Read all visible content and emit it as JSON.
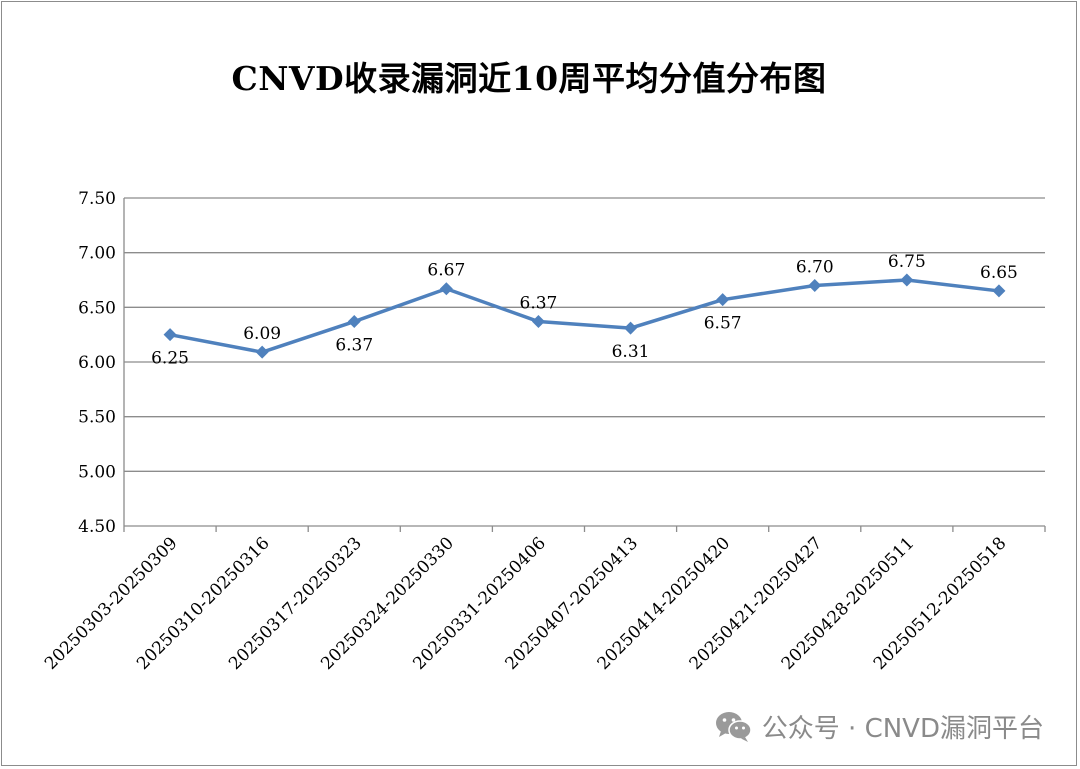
{
  "watermark": {
    "text": "公众号 · CNVD漏洞平台",
    "icon": "wechat-icon"
  },
  "chart_data": {
    "type": "line",
    "title": "CNVD收录漏洞近10周平均分值分布图",
    "xlabel": "",
    "ylabel": "",
    "categories": [
      "20250303-20250309",
      "20250310-20250316",
      "20250317-20250323",
      "20250324-20250330",
      "20250331-20250406",
      "20250407-20250413",
      "20250414-20250420",
      "20250421-20250427",
      "20250428-20250511",
      "20250512-20250518"
    ],
    "series": [
      {
        "values": [
          6.25,
          6.09,
          6.37,
          6.67,
          6.37,
          6.31,
          6.57,
          6.7,
          6.75,
          6.65
        ],
        "data_labels": [
          "6.25",
          "6.09",
          "6.37",
          "6.67",
          "6.37",
          "6.31",
          "6.57",
          "6.70",
          "6.75",
          "6.65"
        ],
        "color": "#4f81bd",
        "marker": "diamond"
      }
    ],
    "ylim": [
      4.5,
      7.5
    ],
    "yticks": [
      "4.50",
      "5.00",
      "5.50",
      "6.00",
      "6.50",
      "7.00",
      "7.50"
    ],
    "grid": true,
    "legend": "none",
    "colors": {
      "line": "#4f81bd",
      "grid": "#8c8c8c",
      "axis": "#8c8c8c"
    }
  }
}
